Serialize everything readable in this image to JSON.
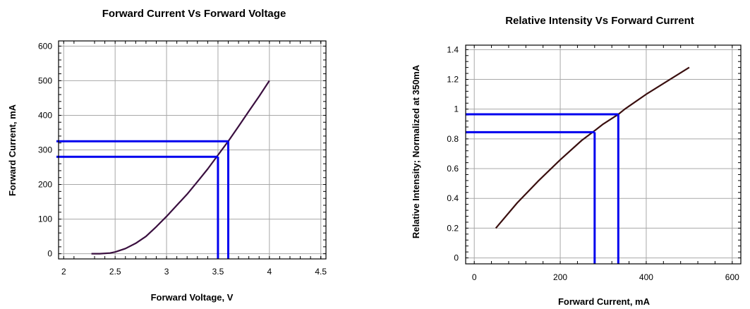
{
  "chart_data": [
    {
      "type": "line",
      "title": "Forward Current Vs Forward Voltage",
      "xlabel": "Forward Voltage, V",
      "ylabel": "Forward Current, mA",
      "xlim": [
        1.95,
        4.55
      ],
      "ylim": [
        -15,
        615
      ],
      "xticks": [
        2,
        2.5,
        3,
        3.5,
        4,
        4.5
      ],
      "xtick_labels": [
        "2",
        "2.5",
        "3",
        "3.5",
        "4",
        "4.5"
      ],
      "yticks": [
        0,
        100,
        200,
        300,
        400,
        500,
        600
      ],
      "ytick_labels": [
        "0",
        "100",
        "200",
        "300",
        "400",
        "500",
        "600"
      ],
      "grid": true,
      "series": [
        {
          "color": "#3a0f3f",
          "x": [
            2.27,
            2.35,
            2.45,
            2.5,
            2.6,
            2.7,
            2.8,
            2.9,
            3.0,
            3.1,
            3.2,
            3.3,
            3.4,
            3.5,
            3.6,
            3.7,
            3.8,
            3.9,
            4.0
          ],
          "y": [
            0,
            0,
            2,
            5,
            15,
            30,
            50,
            78,
            108,
            140,
            172,
            208,
            245,
            285,
            325,
            368,
            412,
            455,
            500
          ]
        }
      ],
      "reference_lines": [
        {
          "color": "#0000ee",
          "x": 3.6,
          "y": 325
        },
        {
          "color": "#0000ee",
          "x": 3.5,
          "y": 280
        }
      ]
    },
    {
      "type": "line",
      "title": "Relative Intensity Vs Forward Current",
      "xlabel": "Forward Current, mA",
      "ylabel": "Relative Intensity; Normalized at 350mA",
      "xlim": [
        -20,
        620
      ],
      "ylim": [
        -0.04,
        1.43
      ],
      "xticks": [
        0,
        200,
        400,
        600
      ],
      "xtick_labels": [
        "0",
        "200",
        "400",
        "600"
      ],
      "yticks": [
        0,
        0.2,
        0.4,
        0.6,
        0.8,
        1,
        1.2,
        1.4
      ],
      "ytick_labels": [
        "0",
        "0.2",
        "0.4",
        "0.6",
        "0.8",
        "1",
        "1.2",
        "1.4"
      ],
      "grid": true,
      "series": [
        {
          "color": "#3a0f0f",
          "x": [
            50,
            100,
            150,
            200,
            250,
            280,
            300,
            335,
            350,
            400,
            450,
            500
          ],
          "y": [
            0.2,
            0.37,
            0.52,
            0.66,
            0.79,
            0.855,
            0.9,
            0.965,
            1.0,
            1.1,
            1.19,
            1.28
          ]
        }
      ],
      "reference_lines": [
        {
          "color": "#0000ee",
          "x": 335,
          "y": 0.965
        },
        {
          "color": "#0000ee",
          "x": 280,
          "y": 0.845
        }
      ]
    }
  ]
}
